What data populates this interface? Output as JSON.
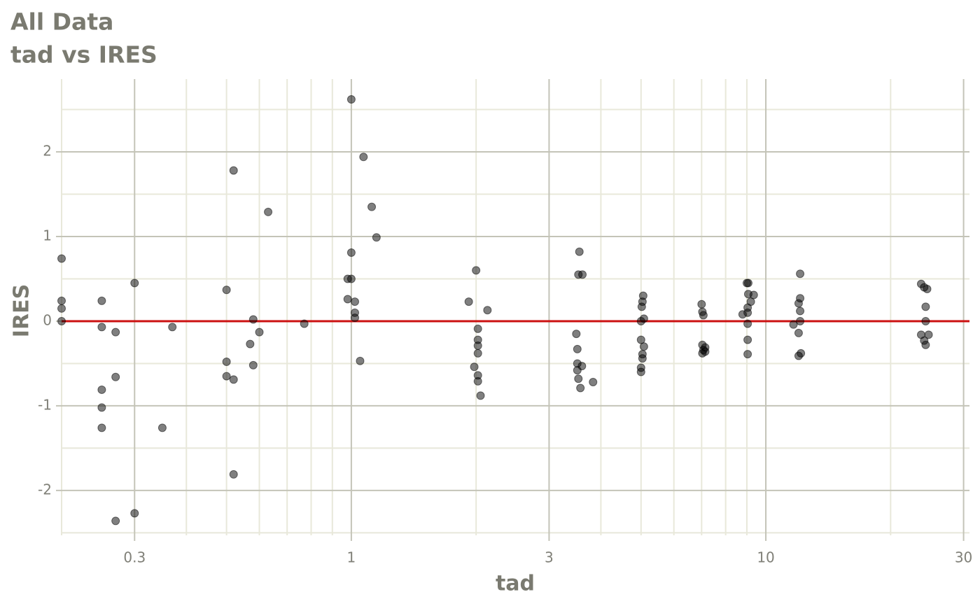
{
  "chart_data": {
    "type": "scatter",
    "title": "All Data",
    "subtitle": "tad vs IRES",
    "x_label": "tad",
    "y_label": "IRES",
    "x_scale": "log",
    "xlim": [
      0.2,
      31
    ],
    "ylim": [
      -2.53,
      2.86
    ],
    "xticks": [
      0.3,
      1,
      3,
      10,
      30
    ],
    "yticks": [
      -2,
      -1,
      0,
      1,
      2
    ],
    "xminor": [
      0.2,
      0.4,
      0.5,
      0.6,
      0.7,
      0.8,
      0.9,
      2,
      4,
      5,
      6,
      7,
      8,
      9,
      20
    ],
    "yminor": [
      -2.5,
      -1.5,
      -0.5,
      0.5,
      1.5,
      2.5
    ],
    "grid": true,
    "color": "#000000",
    "point_alpha": 0.5,
    "hline": {
      "value": 0,
      "color": "#cc1111"
    },
    "x": [
      0.2,
      0.2,
      0.2,
      0.2,
      0.25,
      0.25,
      0.25,
      0.25,
      0.25,
      0.27,
      0.27,
      0.27,
      0.3,
      0.3,
      0.35,
      0.37,
      0.5,
      0.5,
      0.5,
      0.52,
      0.52,
      0.52,
      0.57,
      0.58,
      0.58,
      0.6,
      0.63,
      0.77,
      0.98,
      0.98,
      1.0,
      1.0,
      1.0,
      1.02,
      1.02,
      1.02,
      1.05,
      1.07,
      1.12,
      1.15,
      1.92,
      2.0,
      1.98,
      2.02,
      2.02,
      2.02,
      2.02,
      2.02,
      2.02,
      2.05,
      2.13,
      3.49,
      3.51,
      3.51,
      3.51,
      3.53,
      3.55,
      3.53,
      3.57,
      3.6,
      3.61,
      3.83,
      5.0,
      5.02,
      5.04,
      5.06,
      5.08,
      5.0,
      5.0,
      5.0,
      5.04,
      5.04,
      5.08,
      7.0,
      7.03,
      7.07,
      7.03,
      7.03,
      7.07,
      7.14,
      7.14,
      8.79,
      9.0,
      9.07,
      9.04,
      9.04,
      9.04,
      9.04,
      9.04,
      9.2,
      9.35,
      9.07,
      11.66,
      12.0,
      12.1,
      12.1,
      12.0,
      12.0,
      12.15,
      12.1,
      12.1,
      23.7,
      23.7,
      24.1,
      24.3,
      24.3,
      24.3,
      24.5,
      24.7,
      24.1
    ],
    "values": [
      0.74,
      0.24,
      0.15,
      0,
      0.24,
      -0.07,
      -0.81,
      -1.02,
      -1.26,
      -0.13,
      -0.66,
      -2.36,
      0.45,
      -2.27,
      -1.26,
      -0.07,
      0.37,
      -0.48,
      -0.65,
      1.78,
      -0.69,
      -1.81,
      -0.27,
      0.02,
      -0.52,
      -0.13,
      1.29,
      -0.03,
      0.5,
      0.26,
      2.62,
      0.81,
      0.5,
      0.23,
      0.1,
      0.04,
      -0.47,
      1.94,
      1.35,
      0.99,
      0.23,
      0.6,
      -0.54,
      -0.09,
      -0.22,
      -0.29,
      -0.38,
      -0.64,
      -0.71,
      -0.88,
      0.13,
      -0.15,
      -0.33,
      -0.5,
      -0.58,
      0.55,
      0.82,
      -0.68,
      -0.79,
      -0.53,
      0.55,
      -0.72,
      0,
      0.17,
      0.23,
      0.3,
      0.03,
      -0.22,
      -0.55,
      -0.6,
      -0.44,
      -0.39,
      -0.3,
      0.2,
      0.11,
      0.07,
      -0.28,
      -0.38,
      -0.34,
      -0.31,
      -0.36,
      0.08,
      0.45,
      0.32,
      0.16,
      0.1,
      -0.03,
      -0.22,
      -0.39,
      0.23,
      0.31,
      0.45,
      -0.04,
      0.21,
      0.56,
      0.27,
      -0.14,
      -0.41,
      -0.38,
      0,
      0.12,
      0.44,
      -0.16,
      -0.23,
      0.17,
      0,
      -0.28,
      0.38,
      -0.16,
      0.4
    ]
  }
}
